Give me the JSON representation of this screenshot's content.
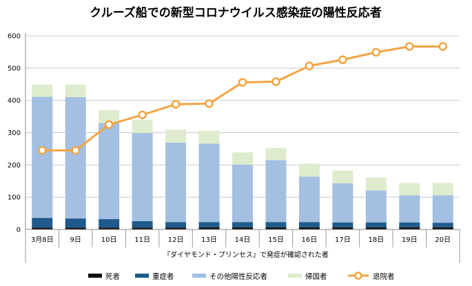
{
  "chart_data": {
    "type": "bar",
    "title": "クルーズ船での新型コロナウイルス感染症の陽性反応者",
    "xlabel": "『ダイヤモンド・プリンセス』で発症が確認された者",
    "ylabel": "",
    "ylim": [
      0,
      600
    ],
    "yticks": [
      0,
      100,
      200,
      300,
      400,
      500,
      600
    ],
    "grid": true,
    "legend": "bottom",
    "categories": [
      "3月8日",
      "9日",
      "10日",
      "11日",
      "12日",
      "13日",
      "14日",
      "15日",
      "16日",
      "17日",
      "18日",
      "19日",
      "20日"
    ],
    "series": [
      {
        "name": "死者",
        "kind": "stacked-bar",
        "color": "#111111",
        "values": [
          6,
          6,
          6,
          6,
          6,
          7,
          7,
          7,
          7,
          7,
          7,
          7,
          7
        ]
      },
      {
        "name": "重症者",
        "kind": "stacked-bar",
        "color": "#1f5a8c",
        "values": [
          30,
          28,
          26,
          20,
          17,
          16,
          16,
          16,
          16,
          15,
          15,
          15,
          14
        ]
      },
      {
        "name": "その他陽性反応者",
        "kind": "stacked-bar",
        "color": "#a3bfe2",
        "values": [
          375,
          376,
          298,
          273,
          246,
          243,
          178,
          192,
          141,
          121,
          99,
          84,
          85
        ]
      },
      {
        "name": "帰国者",
        "kind": "stacked-bar",
        "color": "#deeccd",
        "values": [
          38,
          39,
          40,
          40,
          40,
          40,
          38,
          38,
          40,
          40,
          40,
          38,
          38
        ]
      },
      {
        "name": "退院者",
        "kind": "line",
        "color": "#f4a340",
        "values": [
          245,
          245,
          325,
          355,
          388,
          390,
          456,
          458,
          507,
          526,
          549,
          567,
          567
        ]
      }
    ]
  }
}
